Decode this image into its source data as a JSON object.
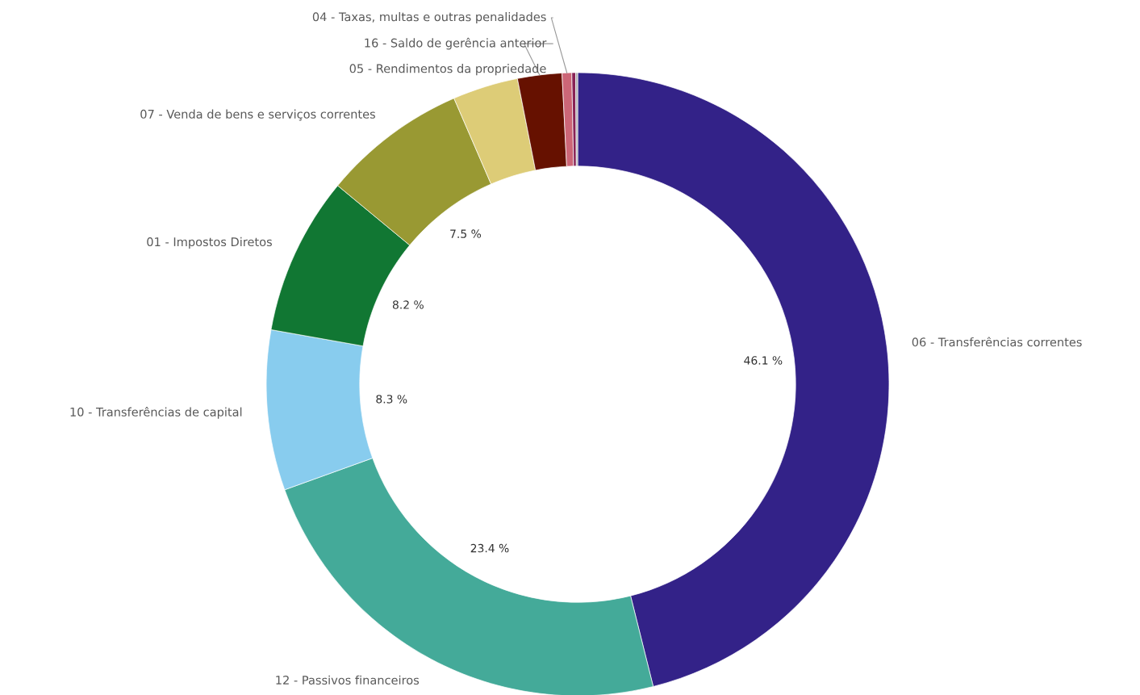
{
  "chart_data": {
    "type": "donut",
    "categories": [
      "06 - Transferências correntes",
      "12 - Passivos financeiros",
      "10 - Transferências de capital",
      "01 - Impostos Diretos",
      "07 - Venda de bens e serviços correntes",
      "05 - Rendimentos da propriedade",
      "16 - Saldo de gerência anterior",
      "04 - Taxas, multas e outras penalidades",
      null,
      null
    ],
    "values": [
      46.1,
      23.4,
      8.3,
      8.2,
      7.5,
      3.4,
      2.3,
      0.5,
      0.2,
      0.1
    ],
    "colors": [
      "#332288",
      "#44aa99",
      "#88ccee",
      "#117733",
      "#999933",
      "#ddcc77",
      "#661100",
      "#cc6677",
      "#882255",
      "#aaaaaa"
    ],
    "value_labels": [
      "46.1 %",
      "23.4 %",
      "8.3 %",
      "8.2 %",
      "7.5 %",
      null,
      null,
      null,
      null,
      null
    ]
  }
}
